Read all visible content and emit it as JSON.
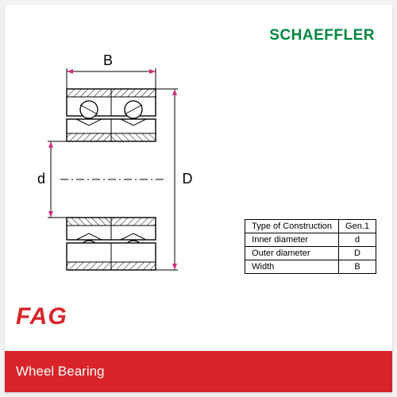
{
  "brand_top": "SCHAEFFLER",
  "brand_left": "FAG",
  "footer_text": "Wheel Bearing",
  "diagram": {
    "labels": {
      "width": "B",
      "inner": "d",
      "outer": "D"
    },
    "colors": {
      "arrow_fill": "#d02f7f",
      "stroke": "#000000",
      "hatch": "#000000",
      "background": "#ffffff"
    },
    "line_width": 1.2
  },
  "table": {
    "rows": [
      {
        "label": "Type of Construction",
        "value": "Gen.1"
      },
      {
        "label": "Inner  diameter",
        "value": "d"
      },
      {
        "label": "Outer diameter",
        "value": "D"
      },
      {
        "label": "Width",
        "value": "B"
      }
    ]
  },
  "colors": {
    "accent_green": "#00873e",
    "accent_red": "#d8232a",
    "page_bg": "#f2f2f2",
    "card_bg": "#ffffff"
  },
  "fonts": {
    "schaeffler_size_pt": 14,
    "fag_size_pt": 22,
    "footer_size_pt": 13,
    "table_size_pt": 8,
    "dim_label_size_pt": 14
  }
}
